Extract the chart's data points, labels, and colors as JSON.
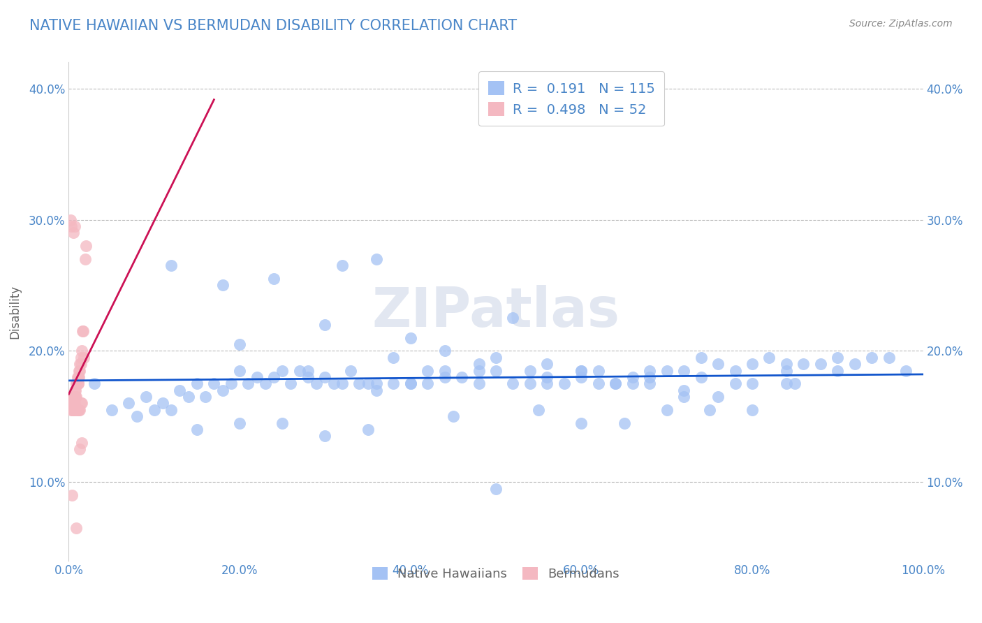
{
  "title": "NATIVE HAWAIIAN VS BERMUDAN DISABILITY CORRELATION CHART",
  "source": "Source: ZipAtlas.com",
  "ylabel": "Disability",
  "watermark": "ZIPatlas",
  "xlim": [
    0.0,
    1.0
  ],
  "ylim": [
    0.04,
    0.42
  ],
  "xticks": [
    0.0,
    0.2,
    0.4,
    0.6,
    0.8,
    1.0
  ],
  "xtick_labels": [
    "0.0%",
    "20.0%",
    "40.0%",
    "60.0%",
    "80.0%",
    "100.0%"
  ],
  "yticks": [
    0.1,
    0.2,
    0.3,
    0.4
  ],
  "ytick_labels": [
    "10.0%",
    "20.0%",
    "30.0%",
    "40.0%"
  ],
  "blue_R": 0.191,
  "blue_N": 115,
  "pink_R": 0.498,
  "pink_N": 52,
  "blue_color": "#a4c2f4",
  "pink_color": "#f4b8c1",
  "blue_line_color": "#1155cc",
  "pink_line_color": "#cc1155",
  "legend_text_color": "#4a86c8",
  "title_color": "#4a86c8",
  "grid_color": "#bbbbbb",
  "background_color": "#ffffff",
  "blue_scatter_x": [
    0.03,
    0.05,
    0.07,
    0.08,
    0.09,
    0.1,
    0.11,
    0.12,
    0.13,
    0.14,
    0.15,
    0.16,
    0.17,
    0.18,
    0.19,
    0.2,
    0.21,
    0.22,
    0.23,
    0.24,
    0.25,
    0.26,
    0.27,
    0.28,
    0.29,
    0.3,
    0.31,
    0.32,
    0.33,
    0.34,
    0.35,
    0.36,
    0.38,
    0.4,
    0.42,
    0.44,
    0.46,
    0.48,
    0.5,
    0.52,
    0.54,
    0.56,
    0.58,
    0.6,
    0.62,
    0.64,
    0.66,
    0.68,
    0.7,
    0.72,
    0.74,
    0.76,
    0.78,
    0.8,
    0.82,
    0.84,
    0.86,
    0.88,
    0.9,
    0.92,
    0.94,
    0.96,
    0.98,
    0.15,
    0.2,
    0.25,
    0.3,
    0.35,
    0.4,
    0.45,
    0.5,
    0.55,
    0.6,
    0.65,
    0.7,
    0.75,
    0.8,
    0.85,
    0.9,
    0.38,
    0.44,
    0.5,
    0.56,
    0.62,
    0.68,
    0.74,
    0.12,
    0.18,
    0.24,
    0.3,
    0.36,
    0.42,
    0.48,
    0.54,
    0.6,
    0.66,
    0.72,
    0.78,
    0.84,
    0.36,
    0.52,
    0.68,
    0.84,
    0.28,
    0.44,
    0.6,
    0.76,
    0.4,
    0.56,
    0.72,
    0.2,
    0.32,
    0.48,
    0.64,
    0.8
  ],
  "blue_scatter_y": [
    0.175,
    0.155,
    0.16,
    0.15,
    0.165,
    0.155,
    0.16,
    0.155,
    0.17,
    0.165,
    0.175,
    0.165,
    0.175,
    0.17,
    0.175,
    0.185,
    0.175,
    0.18,
    0.175,
    0.18,
    0.185,
    0.175,
    0.185,
    0.18,
    0.175,
    0.18,
    0.175,
    0.175,
    0.185,
    0.175,
    0.175,
    0.17,
    0.175,
    0.175,
    0.185,
    0.18,
    0.18,
    0.175,
    0.185,
    0.175,
    0.185,
    0.18,
    0.175,
    0.185,
    0.185,
    0.175,
    0.18,
    0.18,
    0.185,
    0.185,
    0.18,
    0.19,
    0.185,
    0.19,
    0.195,
    0.19,
    0.19,
    0.19,
    0.195,
    0.19,
    0.195,
    0.195,
    0.185,
    0.14,
    0.145,
    0.145,
    0.135,
    0.14,
    0.175,
    0.15,
    0.095,
    0.155,
    0.145,
    0.145,
    0.155,
    0.155,
    0.155,
    0.175,
    0.185,
    0.195,
    0.2,
    0.195,
    0.19,
    0.175,
    0.175,
    0.195,
    0.265,
    0.25,
    0.255,
    0.22,
    0.175,
    0.175,
    0.19,
    0.175,
    0.18,
    0.175,
    0.17,
    0.175,
    0.185,
    0.27,
    0.225,
    0.185,
    0.175,
    0.185,
    0.185,
    0.185,
    0.165,
    0.21,
    0.175,
    0.165,
    0.205,
    0.265,
    0.185,
    0.175,
    0.175
  ],
  "pink_scatter_x": [
    0.002,
    0.003,
    0.004,
    0.004,
    0.005,
    0.005,
    0.006,
    0.006,
    0.007,
    0.007,
    0.008,
    0.008,
    0.009,
    0.009,
    0.01,
    0.01,
    0.011,
    0.011,
    0.012,
    0.012,
    0.013,
    0.013,
    0.014,
    0.014,
    0.015,
    0.016,
    0.017,
    0.018,
    0.019,
    0.02,
    0.003,
    0.004,
    0.005,
    0.006,
    0.007,
    0.008,
    0.009,
    0.01,
    0.011,
    0.012,
    0.013,
    0.014,
    0.015,
    0.003,
    0.005,
    0.007,
    0.009,
    0.011,
    0.013,
    0.015,
    0.002,
    0.004
  ],
  "pink_scatter_y": [
    0.16,
    0.165,
    0.165,
    0.16,
    0.16,
    0.165,
    0.16,
    0.165,
    0.165,
    0.17,
    0.165,
    0.17,
    0.175,
    0.175,
    0.175,
    0.18,
    0.175,
    0.18,
    0.18,
    0.185,
    0.185,
    0.19,
    0.19,
    0.195,
    0.2,
    0.215,
    0.215,
    0.195,
    0.27,
    0.28,
    0.155,
    0.155,
    0.155,
    0.155,
    0.16,
    0.155,
    0.165,
    0.155,
    0.155,
    0.155,
    0.155,
    0.16,
    0.16,
    0.295,
    0.29,
    0.295,
    0.065,
    0.175,
    0.125,
    0.13,
    0.3,
    0.09
  ],
  "pink_trend_x_start": 0.0,
  "pink_trend_x_end": 0.17,
  "blue_trend_x_start": 0.0,
  "blue_trend_x_end": 1.0
}
